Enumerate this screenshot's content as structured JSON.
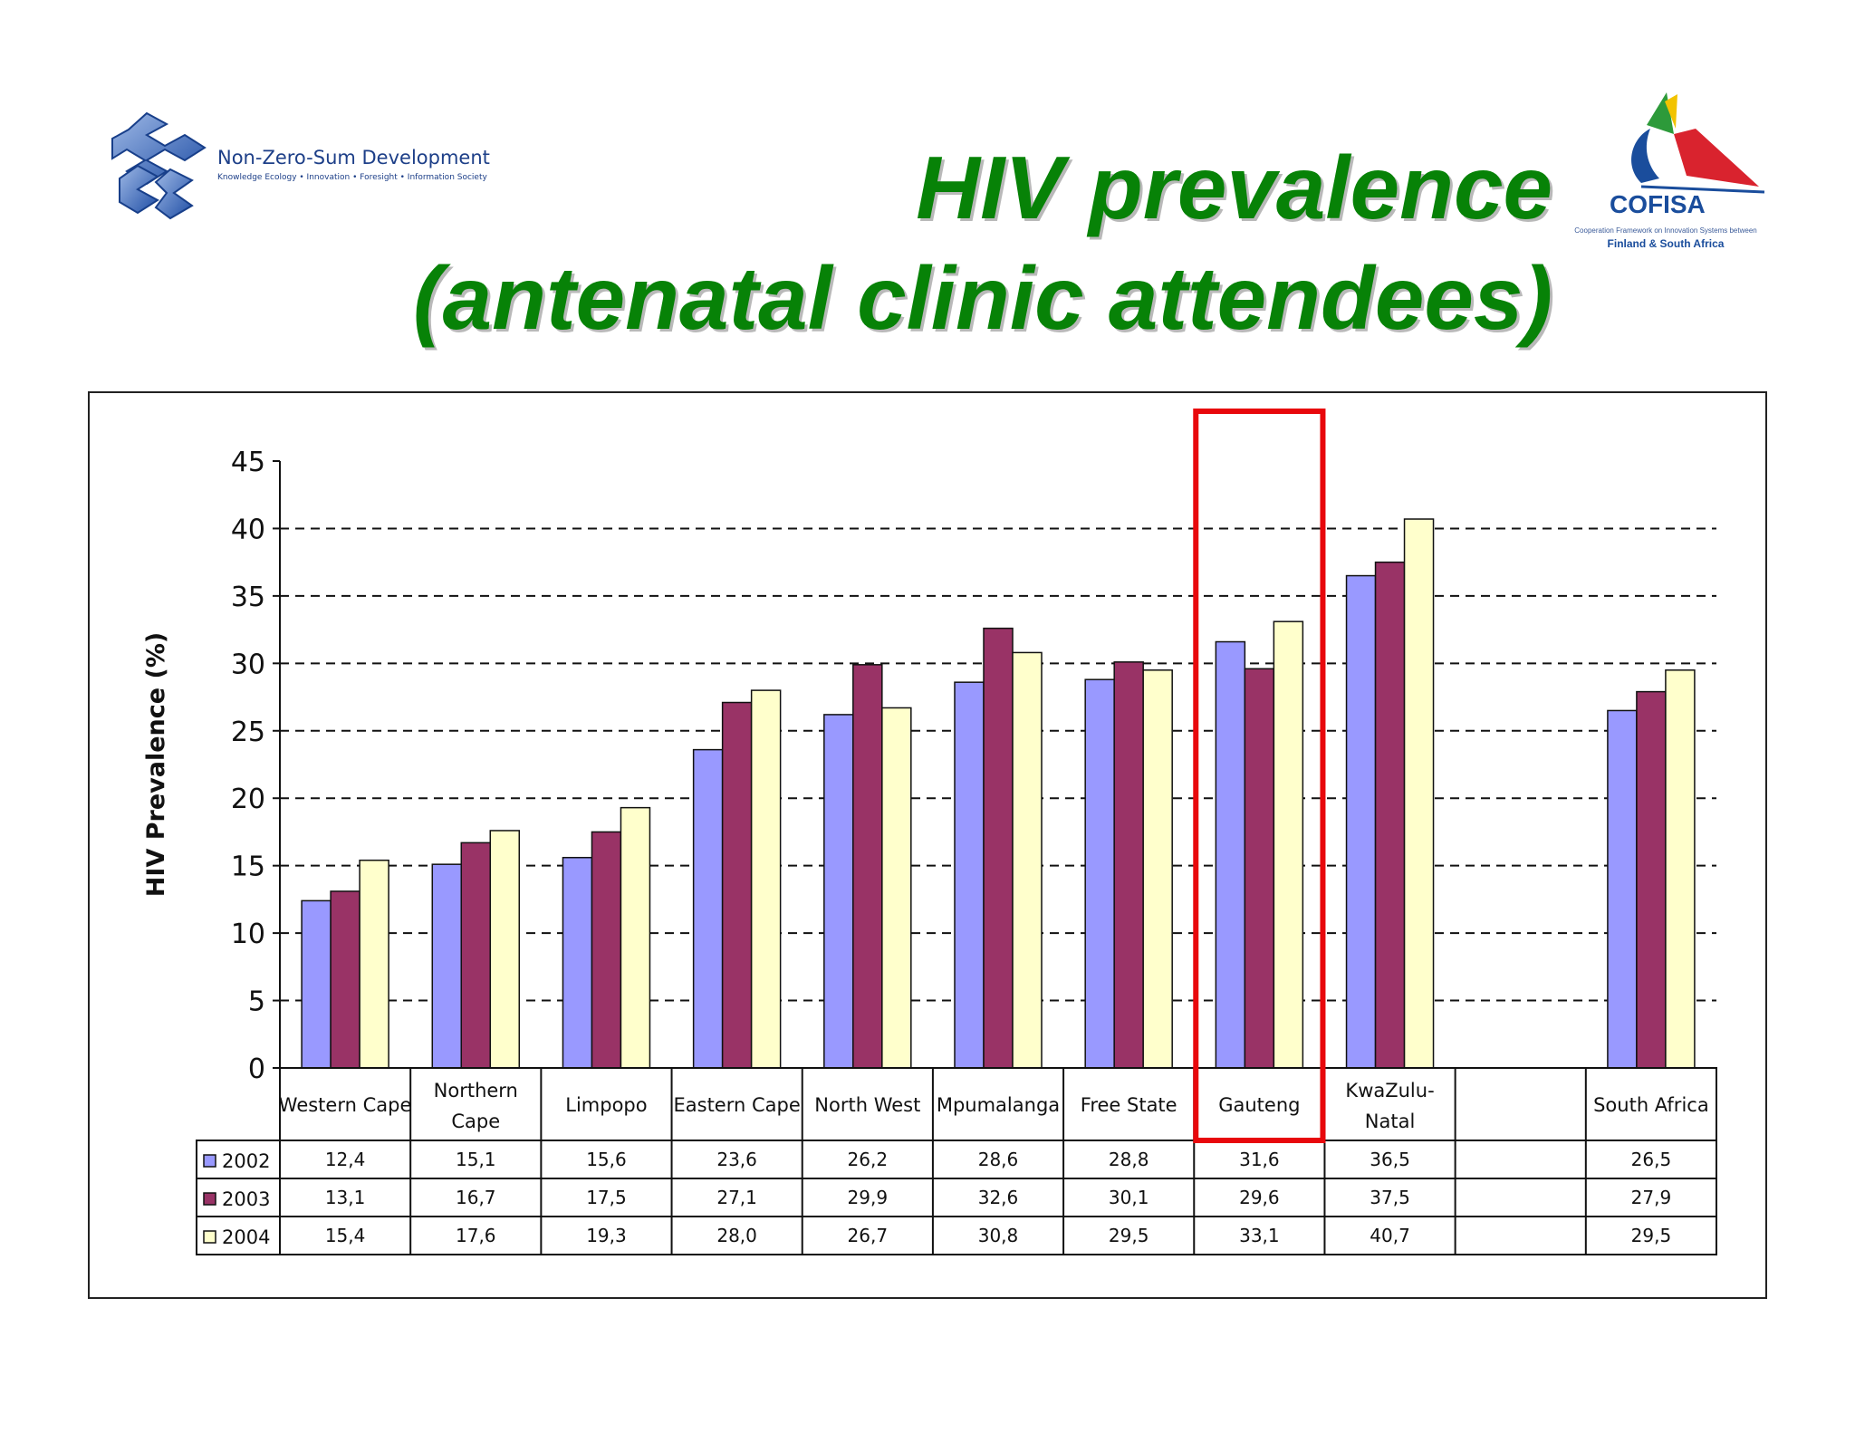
{
  "title": {
    "line1": "HIV prevalence",
    "line2": "(antenatal clinic attendees)"
  },
  "logos": {
    "left_name": "Non-Zero-Sum Development",
    "left_tagline": "Knowledge Ecology • Innovation • Foresight • Information Society",
    "right_name": "COFISA",
    "right_tagline": "Cooperation Framework on Innovation Systems between",
    "right_tagline2": "Finland & South Africa"
  },
  "colors": {
    "title": "#078207",
    "highlight": "#e8080c",
    "series": [
      "#9999ff",
      "#993366",
      "#ffffcc"
    ]
  },
  "chart_data": {
    "type": "bar",
    "title": "",
    "xlabel": "",
    "ylabel": "HIV Prevalence (%)",
    "ylim": [
      0,
      45
    ],
    "yticks": [
      0,
      5,
      10,
      15,
      20,
      25,
      30,
      35,
      40,
      45
    ],
    "grid": "dashed horizontal",
    "highlighted_category": "Gauteng",
    "categories": [
      [
        "Western Cape"
      ],
      [
        "Northern",
        "Cape"
      ],
      [
        "Limpopo"
      ],
      [
        "Eastern Cape"
      ],
      [
        "North West"
      ],
      [
        "Mpumalanga"
      ],
      [
        "Free State"
      ],
      [
        "Gauteng"
      ],
      [
        "KwaZulu-",
        "Natal"
      ],
      [
        ""
      ],
      [
        "South Africa"
      ]
    ],
    "series": [
      {
        "name": "2002",
        "values": [
          12.4,
          15.1,
          15.6,
          23.6,
          26.2,
          28.6,
          28.8,
          31.6,
          36.5,
          null,
          26.5
        ],
        "labels": [
          "12,4",
          "15,1",
          "15,6",
          "23,6",
          "26,2",
          "28,6",
          "28,8",
          "31,6",
          "36,5",
          "",
          "26,5"
        ]
      },
      {
        "name": "2003",
        "values": [
          13.1,
          16.7,
          17.5,
          27.1,
          29.9,
          32.6,
          30.1,
          29.6,
          37.5,
          null,
          27.9
        ],
        "labels": [
          "13,1",
          "16,7",
          "17,5",
          "27,1",
          "29,9",
          "32,6",
          "30,1",
          "29,6",
          "37,5",
          "",
          "27,9"
        ]
      },
      {
        "name": "2004",
        "values": [
          15.4,
          17.6,
          19.3,
          28.0,
          26.7,
          30.8,
          29.5,
          33.1,
          40.7,
          null,
          29.5
        ],
        "labels": [
          "15,4",
          "17,6",
          "19,3",
          "28,0",
          "26,7",
          "30,8",
          "29,5",
          "33,1",
          "40,7",
          "",
          "29,5"
        ]
      }
    ]
  }
}
